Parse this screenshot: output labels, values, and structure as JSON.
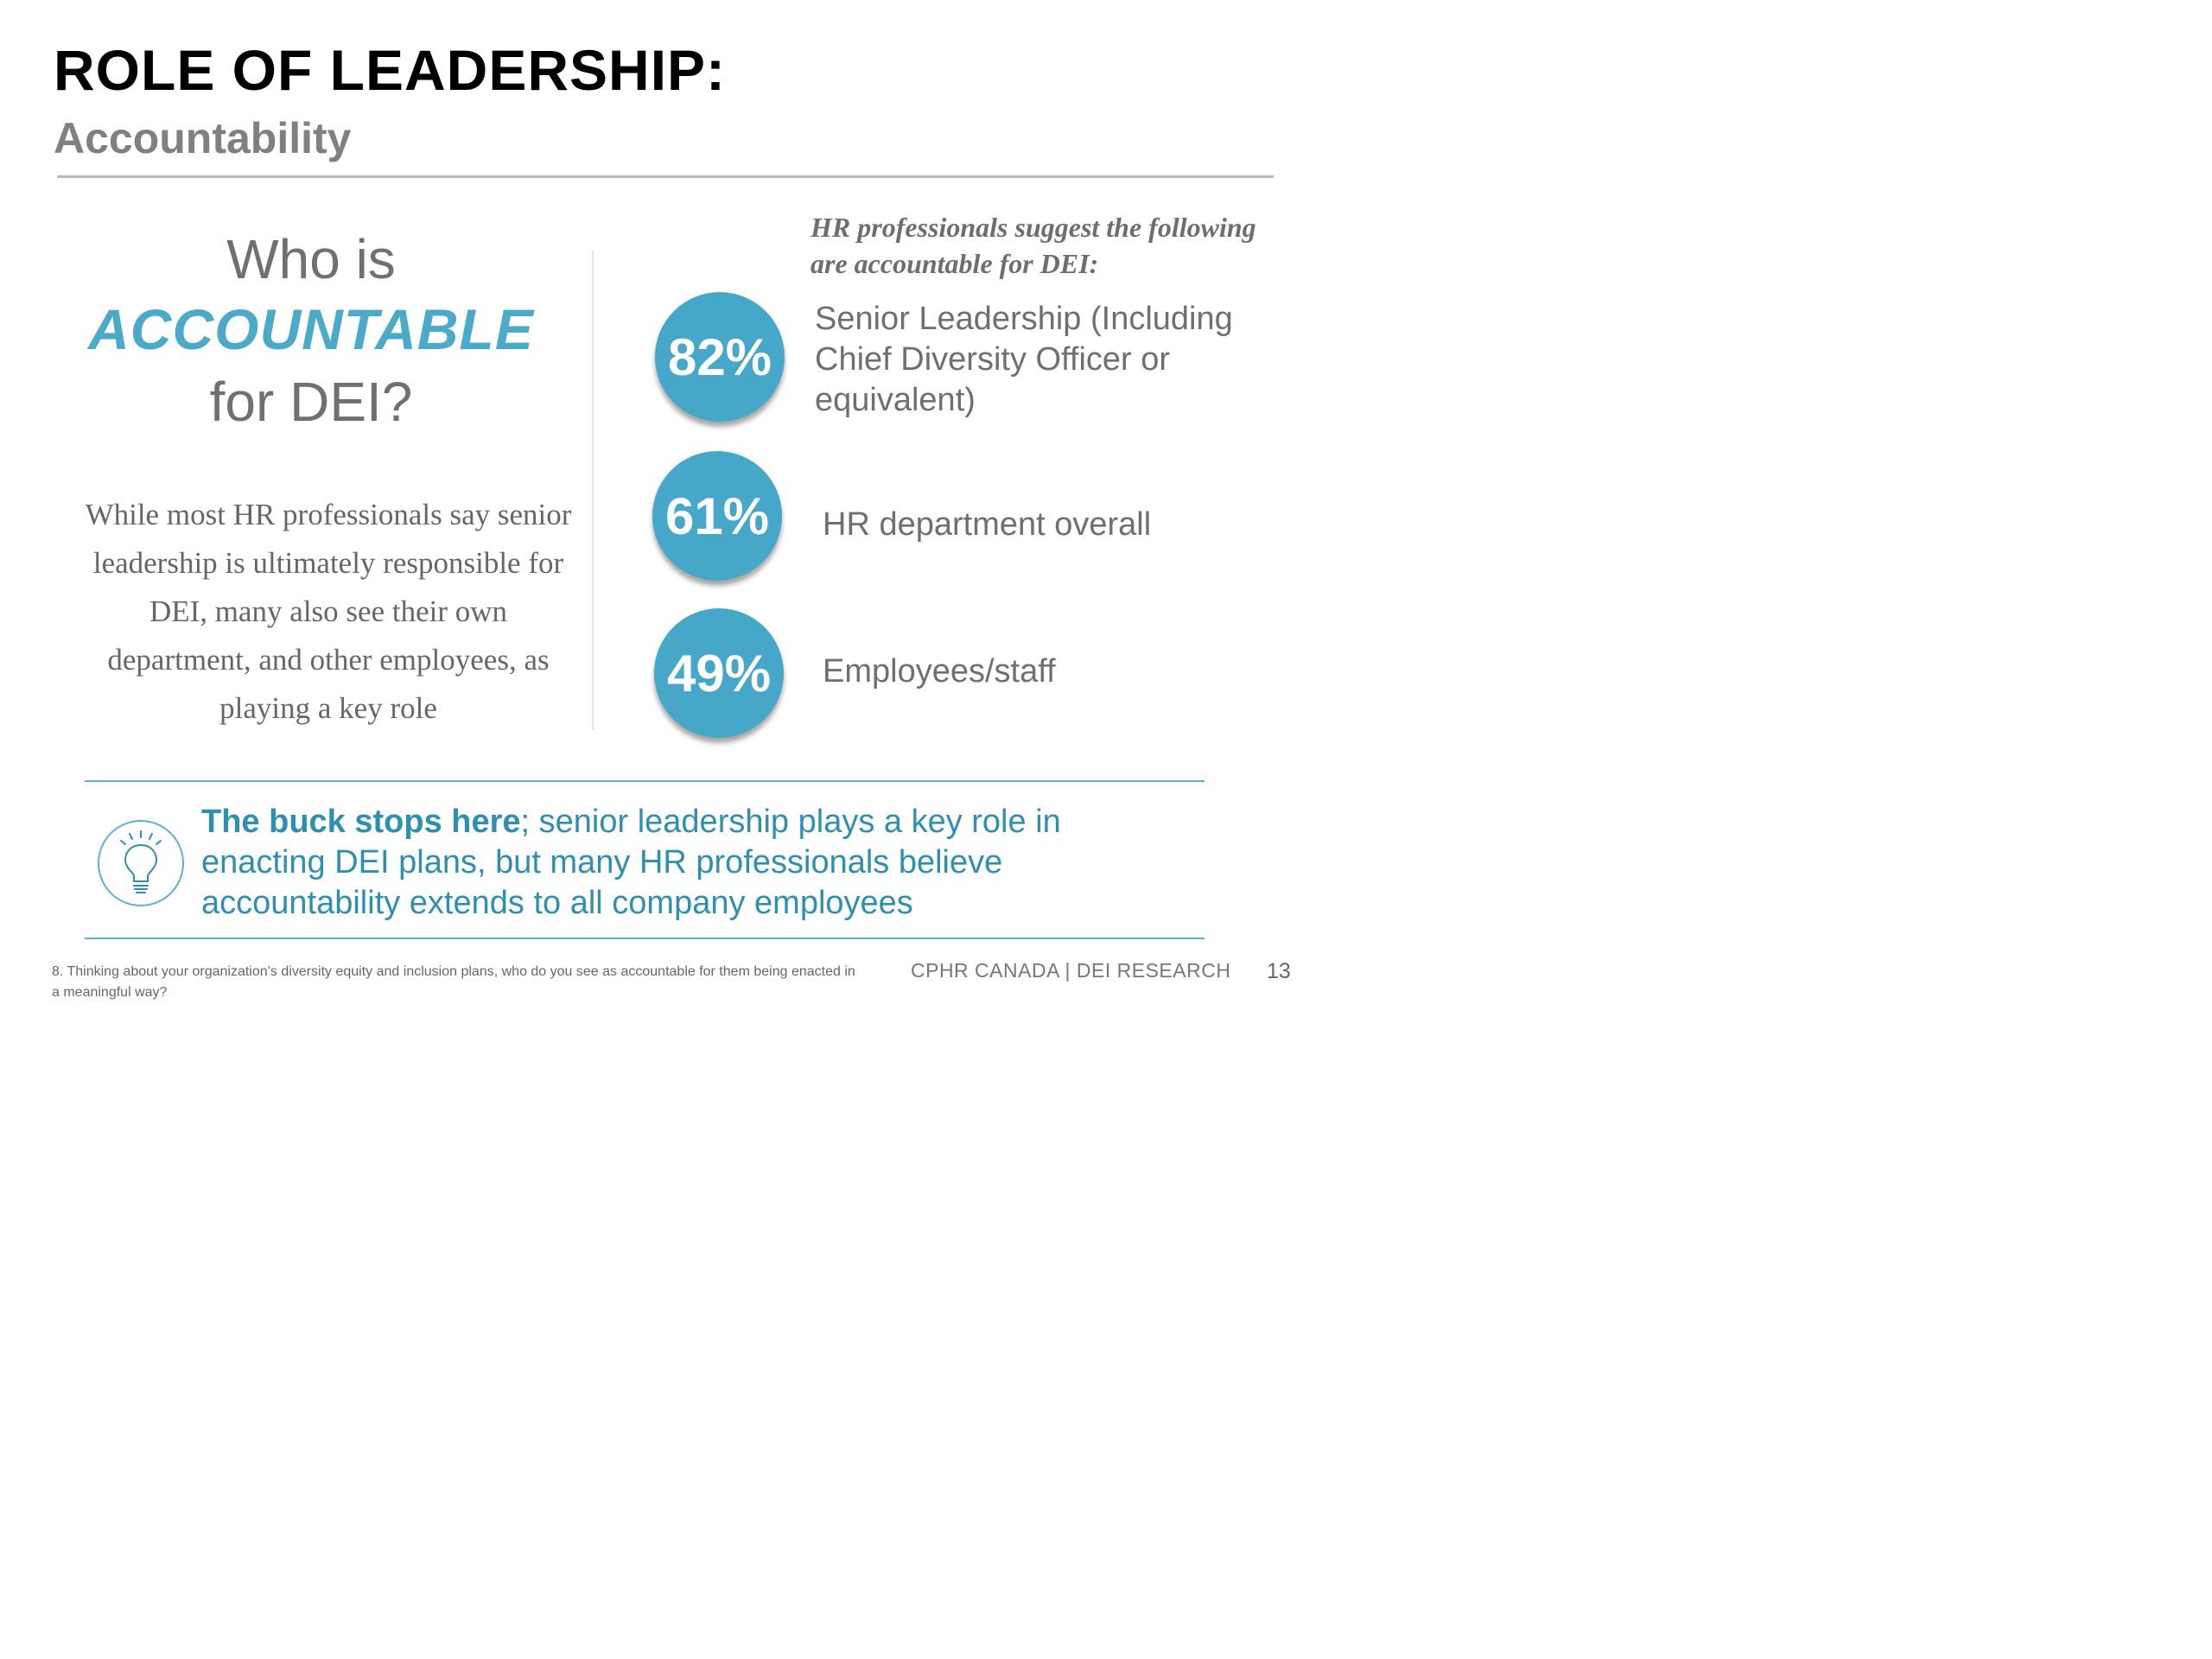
{
  "title": "ROLE OF LEADERSHIP:",
  "subtitle": "Accountability",
  "question": {
    "line1": "Who is",
    "emphasis": "ACCOUNTABLE",
    "line3": "for DEI?"
  },
  "paragraph": "While most HR professionals say senior leadership is ultimately responsible for DEI, many also see their own department, and other employees, as playing a key role",
  "right_header": "HR professionals suggest the following are accountable for DEI:",
  "stats": [
    {
      "percent": "82%",
      "label": "Senior Leadership (Including Chief Diversity Officer or equivalent)"
    },
    {
      "percent": "61%",
      "label": "HR department overall"
    },
    {
      "percent": "49%",
      "label": "Employees/staff"
    }
  ],
  "callout": {
    "bold": "The buck stops here",
    "rest": "; senior leadership plays a key role in enacting DEI plans, but many HR professionals believe accountability extends to all company employees"
  },
  "icons": {
    "callout": "lightbulb-icon"
  },
  "colors": {
    "accent": "#47a7c8",
    "callout_text": "#2f8fb0",
    "body_text": "#6f6f6f"
  },
  "footer": {
    "footnote": "8. Thinking about your organization’s diversity equity and inclusion plans, who do you see as accountable for them being enacted in a meaningful way?",
    "org": "CPHR CANADA | DEI RESEARCH",
    "page": "13"
  }
}
